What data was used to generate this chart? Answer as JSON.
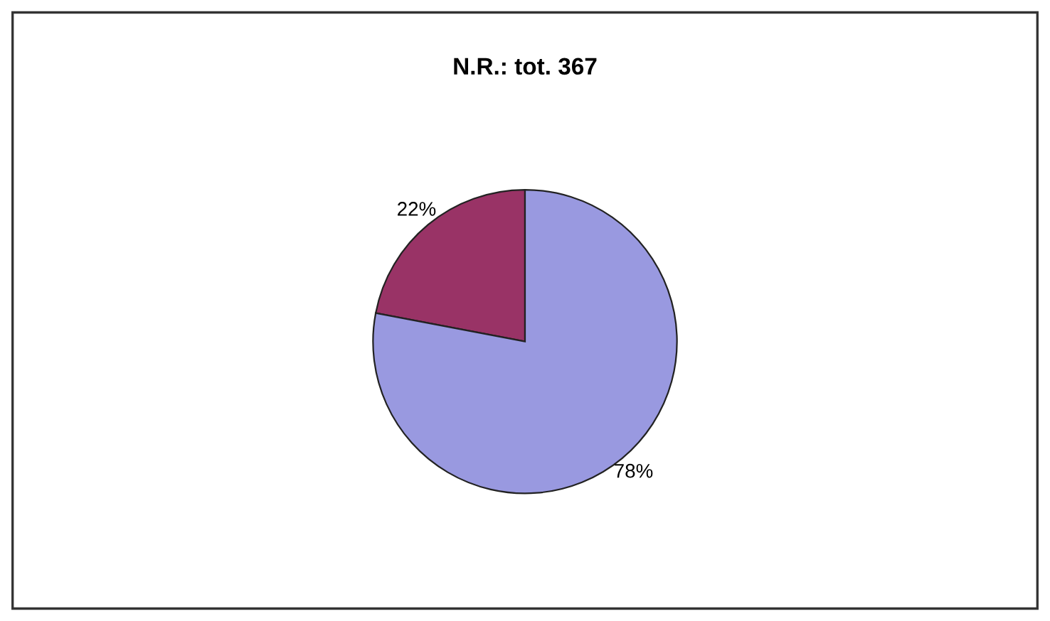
{
  "chart_data": {
    "type": "pie",
    "title": "N.R.: tot. 367",
    "categories": [
      null,
      null
    ],
    "values": [
      22,
      78
    ],
    "value_labels": [
      "22%",
      "78%"
    ],
    "colors": [
      "#993366",
      "#9999e0"
    ]
  }
}
